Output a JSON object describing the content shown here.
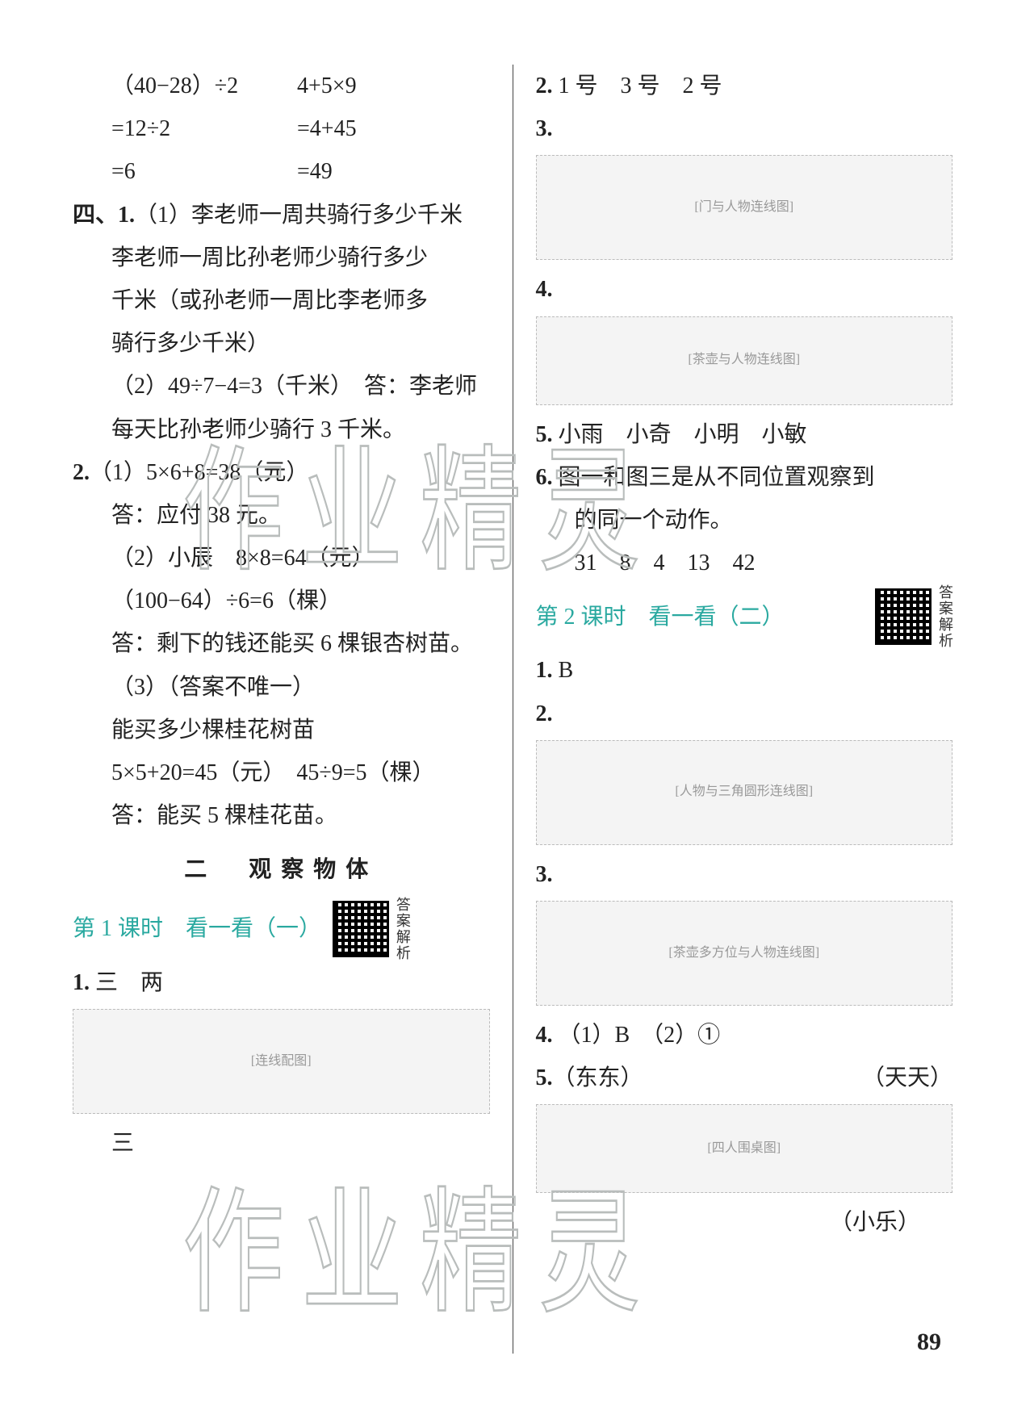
{
  "page_number": "89",
  "watermark_text": "作业精灵",
  "colors": {
    "text": "#222222",
    "accent": "#2aa9a0",
    "watermark_stroke": "#b9bdbc",
    "background": "#ffffff"
  },
  "left": {
    "equations": [
      {
        "a": "（40−28）÷2",
        "b": "4+5×9"
      },
      {
        "a": "=12÷2",
        "b": "=4+45"
      },
      {
        "a": "=6",
        "b": "=49"
      }
    ],
    "section4_label": "四、",
    "q1_label": "1.",
    "q1_lines": [
      "（1）李老师一周共骑行多少千米",
      "李老师一周比孙老师少骑行多少",
      "千米（或孙老师一周比李老师多",
      "骑行多少千米）",
      "（2）49÷7−4=3（千米）　答：李老师",
      "每天比孙老师少骑行 3 千米。"
    ],
    "q2_label": "2.",
    "q2_lines": [
      "（1）5×6+8=38（元）",
      "答：应付 38 元。",
      "（2）小辰　8×8=64（元）",
      "（100−64）÷6=6（棵）",
      "答：剩下的钱还能买 6 棵银杏树苗。",
      "（3）（答案不唯一）",
      "能买多少棵桂花树苗",
      "5×5+20=45（元）　45÷9=5（棵）",
      "答：能买 5 棵桂花苗。"
    ],
    "unit_heading": "二　观察物体",
    "lesson1_title": "第 1 课时　看一看（一）",
    "qr_label": "答案解析",
    "a1_label": "1.",
    "a1_text": "三　两",
    "fig1_alt": "[连线配图]",
    "trailing": "三"
  },
  "right": {
    "a2_label": "2.",
    "a2_text": "1 号　3 号　2 号",
    "a3_label": "3.",
    "fig3_alt": "[门与人物连线图]",
    "a4_label": "4.",
    "fig4_alt": "[茶壶与人物连线图]",
    "a5_label": "5.",
    "a5_text": "小雨　小奇　小明　小敏",
    "a6_label": "6.",
    "a6_lines": [
      "图一和图三是从不同位置观察到",
      "的同一个动作。"
    ],
    "seq_label": "",
    "seq_text": "31　8　4　13　42",
    "lesson2_title": "第 2 课时　看一看（二）",
    "qr_label": "答案解析",
    "b1_label": "1.",
    "b1_text": "B",
    "b2_label": "2.",
    "fig_b2_alt": "[人物与三角圆形连线图]",
    "b3_label": "3.",
    "fig_b3_alt": "[茶壶多方位与人物连线图]",
    "b4_label": "4.",
    "b4_text": "（1）B　（2）①",
    "b5_label": "5.",
    "b5_pre": "（东东）",
    "b5_post": "（天天）",
    "fig_b5_alt": "[四人围桌图]",
    "b5_bottom": "（小乐）"
  }
}
